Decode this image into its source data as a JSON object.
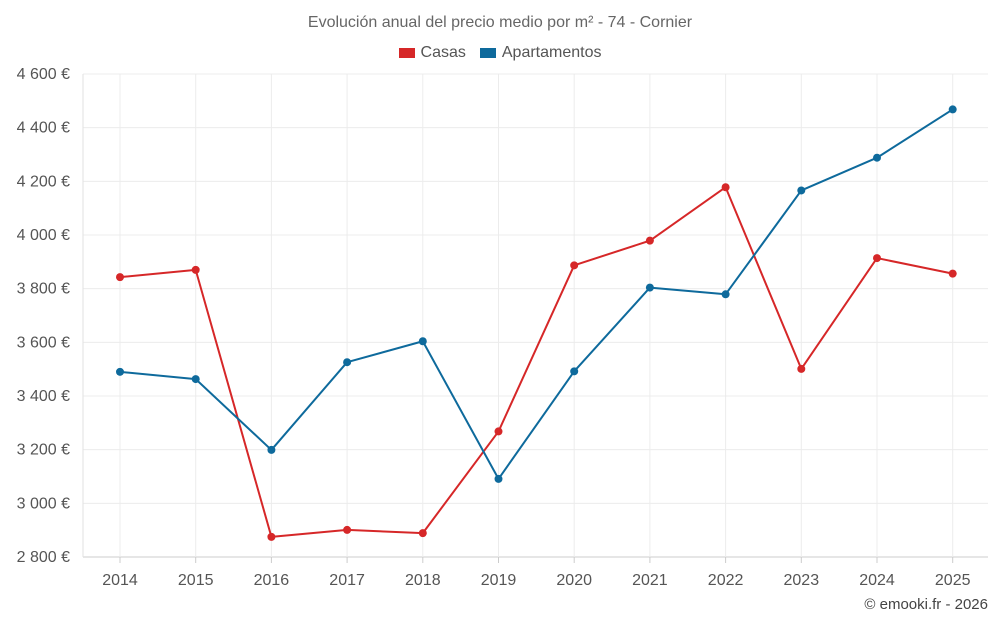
{
  "chart_data": {
    "type": "line",
    "title": "Evolución anual del precio medio por m² - 74 - Cornier",
    "categories": [
      "2014",
      "2015",
      "2016",
      "2017",
      "2018",
      "2019",
      "2020",
      "2021",
      "2022",
      "2023",
      "2024",
      "2025"
    ],
    "series": [
      {
        "name": "Casas",
        "color": "#d62728",
        "values": [
          3843,
          3870,
          2875,
          2901,
          2889,
          3268,
          3887,
          3979,
          4178,
          3501,
          3914,
          3856
        ]
      },
      {
        "name": "Apartamentos",
        "color": "#0e6a9c",
        "values": [
          3490,
          3463,
          3199,
          3526,
          3604,
          3091,
          3492,
          3804,
          3779,
          4166,
          4288,
          4468
        ]
      }
    ],
    "ylim": [
      2800,
      4600
    ],
    "yticks": [
      2800,
      3000,
      3200,
      3400,
      3600,
      3800,
      4000,
      4200,
      4400,
      4600
    ],
    "ytick_labels": [
      "2 800 €",
      "3 000 €",
      "3 200 €",
      "3 400 €",
      "3 600 €",
      "3 800 €",
      "4 000 €",
      "4 200 €",
      "4 400 €",
      "4 600 €"
    ],
    "xlabel": "",
    "ylabel": "",
    "grid": true,
    "legend_position": "top-center"
  },
  "credit": "© emooki.fr - 2026"
}
